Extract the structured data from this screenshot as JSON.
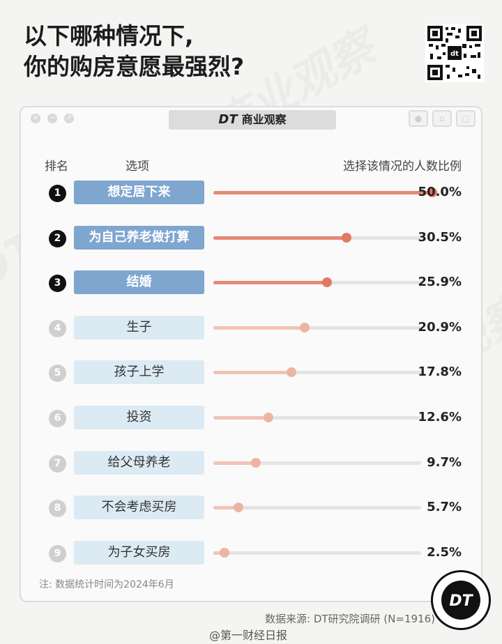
{
  "title": {
    "line1": "以下哪种情况下,",
    "line2": "你的购房意愿最强烈?"
  },
  "window": {
    "brand_mark": "DT",
    "brand_name": "商业观察"
  },
  "headers": {
    "rank": "排名",
    "option": "选项",
    "ratio": "选择该情况的人数比例"
  },
  "colors": {
    "top_bar": "#e58a73",
    "low_bar": "#f1c3b5",
    "top_knob": "#e07a61",
    "low_knob": "#eeb4a3",
    "top_option": "#7ea6cf",
    "low_option": "#dceaf4"
  },
  "chart_data": {
    "type": "bar",
    "orientation": "horizontal",
    "xlim": [
      0,
      50
    ],
    "categories": [
      "想定居下来",
      "为自己养老做打算",
      "结婚",
      "生子",
      "孩子上学",
      "投资",
      "给父母养老",
      "不会考虑买房",
      "为子女买房"
    ],
    "ranks": [
      "1",
      "2",
      "3",
      "4",
      "5",
      "6",
      "7",
      "8",
      "9"
    ],
    "values": [
      50.0,
      30.5,
      25.9,
      20.9,
      17.8,
      12.6,
      9.7,
      5.7,
      2.5
    ],
    "labels": [
      "50.0%",
      "30.5%",
      "25.9%",
      "20.9%",
      "17.8%",
      "12.6%",
      "9.7%",
      "5.7%",
      "2.5%"
    ],
    "highlighted_top": 3
  },
  "note": "注: 数据统计时间为2024年6月",
  "source": "数据来源: DT研究院调研 (N=1916)",
  "weibo": "@第一财经日报",
  "logo_text": "DT"
}
